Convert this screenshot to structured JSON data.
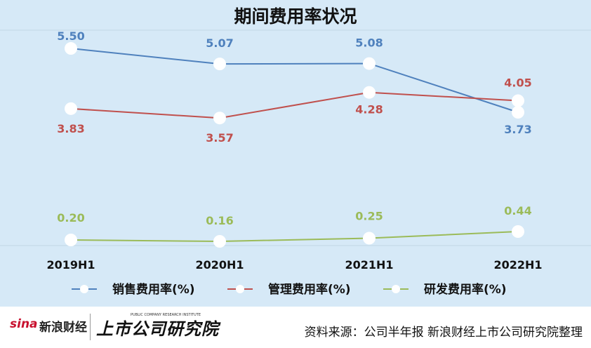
{
  "chart_data": {
    "type": "line",
    "title": "期间费用率状况",
    "categories": [
      "2019H1",
      "2020H1",
      "2021H1",
      "2022H1"
    ],
    "series": [
      {
        "name": "销售费用率(%)",
        "values": [
          5.5,
          5.07,
          5.08,
          3.73
        ],
        "color": "#4f81bd",
        "labels": [
          "5.50",
          "5.07",
          "5.08",
          "3.73"
        ]
      },
      {
        "name": "管理费用率(%)",
        "values": [
          3.83,
          3.57,
          4.28,
          4.05
        ],
        "color": "#c0504d",
        "labels": [
          "3.83",
          "3.57",
          "4.28",
          "4.05"
        ]
      },
      {
        "name": "研发费用率(%)",
        "values": [
          0.2,
          0.16,
          0.25,
          0.44
        ],
        "color": "#9bbb59",
        "labels": [
          "0.20",
          "0.16",
          "0.25",
          "0.44"
        ]
      }
    ],
    "grid": false,
    "legend": "bottom"
  },
  "footer": {
    "sina_logo": "sina",
    "sina_name": "新浪财经",
    "listed_logo": "上市公司研究院",
    "listed_logo_sub": "PUBLIC COMPANY RESEARCH INSTITUTE",
    "source": "资料来源：公司半年报 新浪财经上市公司研究院整理"
  }
}
